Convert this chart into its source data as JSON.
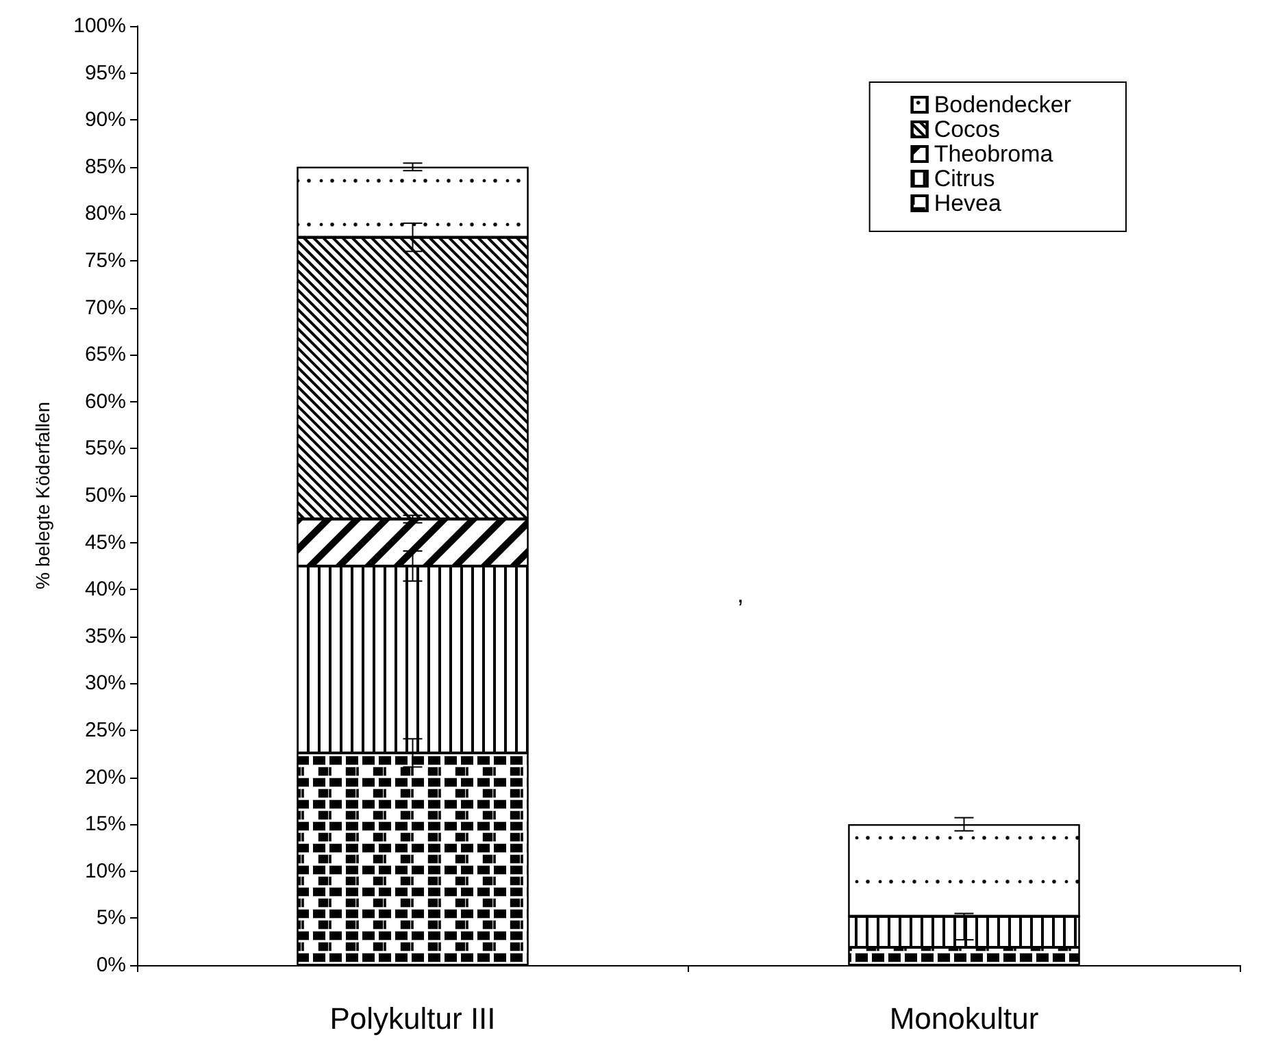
{
  "chart_data": {
    "type": "bar",
    "stacked": true,
    "ylabel": "% belegte Köderfallen",
    "categories": [
      "Polykultur III",
      "Monokultur"
    ],
    "series": [
      {
        "name": "Hevea",
        "color": "#ffffff",
        "values": [
          22.6,
          1.9
        ],
        "errors": [
          1.5,
          null
        ]
      },
      {
        "name": "Citrus",
        "color": "#ffffff",
        "values": [
          19.9,
          3.3
        ],
        "errors": [
          1.6,
          [
            2.7,
            5.5
          ]
        ]
      },
      {
        "name": "Theobroma",
        "color": "#ffffff",
        "values": [
          5,
          0
        ],
        "errors": [
          0.4,
          null
        ]
      },
      {
        "name": "Cocos",
        "color": "#ffffff",
        "values": [
          30,
          0
        ],
        "errors": [
          1.5,
          null
        ]
      },
      {
        "name": "Bodendecker",
        "color": "#ffffff",
        "values": [
          7.5,
          9.8
        ],
        "errors": [
          0.4,
          0.7
        ]
      }
    ],
    "ylim": [
      0,
      100
    ],
    "yticks": [
      {
        "value": 0,
        "label": "0%"
      },
      {
        "value": 5,
        "label": "5%"
      },
      {
        "value": 10,
        "label": "10%"
      },
      {
        "value": 15,
        "label": "15%"
      },
      {
        "value": 20,
        "label": "20%"
      },
      {
        "value": 25,
        "label": "25%"
      },
      {
        "value": 30,
        "label": "30%"
      },
      {
        "value": 35,
        "label": "35%"
      },
      {
        "value": 40,
        "label": "40%"
      },
      {
        "value": 45,
        "label": "45%"
      },
      {
        "value": 50,
        "label": "50%"
      },
      {
        "value": 55,
        "label": "55%"
      },
      {
        "value": 60,
        "label": "60%"
      },
      {
        "value": 65,
        "label": "65%"
      },
      {
        "value": 70,
        "label": "70%"
      },
      {
        "value": 75,
        "label": "75%"
      },
      {
        "value": 80,
        "label": "80%"
      },
      {
        "value": 85,
        "label": "85%"
      },
      {
        "value": 90,
        "label": "90%"
      },
      {
        "value": 95,
        "label": "95%"
      },
      {
        "value": 100,
        "label": "100%"
      }
    ],
    "grid": false,
    "legend": "top right",
    "annotations": [
      ","
    ]
  }
}
